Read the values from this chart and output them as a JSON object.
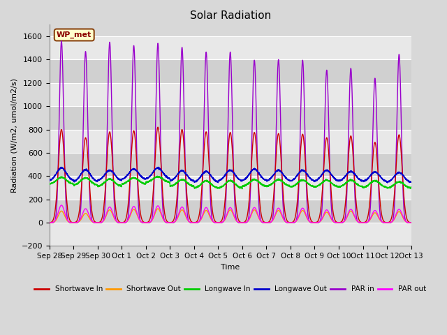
{
  "title": "Solar Radiation",
  "ylabel": "Radiation (W/m2, umol/m2/s)",
  "xlabel": "Time",
  "ylim": [
    -200,
    1700
  ],
  "yticks": [
    -200,
    0,
    200,
    400,
    600,
    800,
    1000,
    1200,
    1400,
    1600
  ],
  "x_tick_labels": [
    "Sep 28",
    "Sep 29",
    "Sep 30",
    "Oct 1",
    "Oct 2",
    "Oct 3",
    "Oct 4",
    "Oct 5",
    "Oct 6",
    "Oct 7",
    "Oct 8",
    "Oct 9",
    "Oct 10",
    "Oct 11",
    "Oct 12",
    "Oct 13"
  ],
  "station_label": "WP_met",
  "background_color": "#d8d8d8",
  "plot_bg_color": "#d8d8d8",
  "grid_color": "#ffffff",
  "colors": {
    "shortwave_in": "#cc0000",
    "shortwave_out": "#ff9900",
    "longwave_in": "#00cc00",
    "longwave_out": "#0000cc",
    "par_in": "#9900cc",
    "par_out": "#ff00ff"
  },
  "legend": [
    {
      "label": "Shortwave In",
      "color": "#cc0000"
    },
    {
      "label": "Shortwave Out",
      "color": "#ff9900"
    },
    {
      "label": "Longwave In",
      "color": "#00cc00"
    },
    {
      "label": "Longwave Out",
      "color": "#0000cc"
    },
    {
      "label": "PAR in",
      "color": "#9900cc"
    },
    {
      "label": "PAR out",
      "color": "#ff00ff"
    }
  ],
  "n_days": 15,
  "pts_per_day": 288,
  "shortwave_in_peaks": [
    800,
    730,
    780,
    790,
    820,
    800,
    780,
    775,
    775,
    765,
    760,
    730,
    745,
    690,
    755
  ],
  "shortwave_out_peaks": [
    100,
    80,
    110,
    115,
    120,
    110,
    105,
    110,
    110,
    105,
    105,
    90,
    100,
    85,
    95
  ],
  "longwave_in_base": [
    330,
    320,
    310,
    330,
    345,
    310,
    295,
    295,
    310,
    310,
    305,
    305,
    305,
    300,
    295
  ],
  "longwave_in_noon": [
    390,
    385,
    375,
    385,
    395,
    370,
    360,
    360,
    370,
    370,
    365,
    365,
    365,
    360,
    350
  ],
  "longwave_out_base": [
    360,
    350,
    360,
    370,
    375,
    355,
    345,
    355,
    360,
    355,
    355,
    355,
    355,
    350,
    345
  ],
  "longwave_out_noon": [
    470,
    455,
    450,
    460,
    470,
    445,
    440,
    450,
    460,
    450,
    450,
    450,
    440,
    435,
    430
  ],
  "par_in_peaks": [
    1560,
    1470,
    1550,
    1520,
    1540,
    1505,
    1465,
    1465,
    1395,
    1400,
    1395,
    1310,
    1325,
    1240,
    1445
  ],
  "par_out_peaks": [
    150,
    120,
    135,
    140,
    145,
    135,
    130,
    130,
    130,
    125,
    125,
    110,
    115,
    105,
    115
  ],
  "band_colors": [
    "#e8e8e8",
    "#d0d0d0"
  ]
}
